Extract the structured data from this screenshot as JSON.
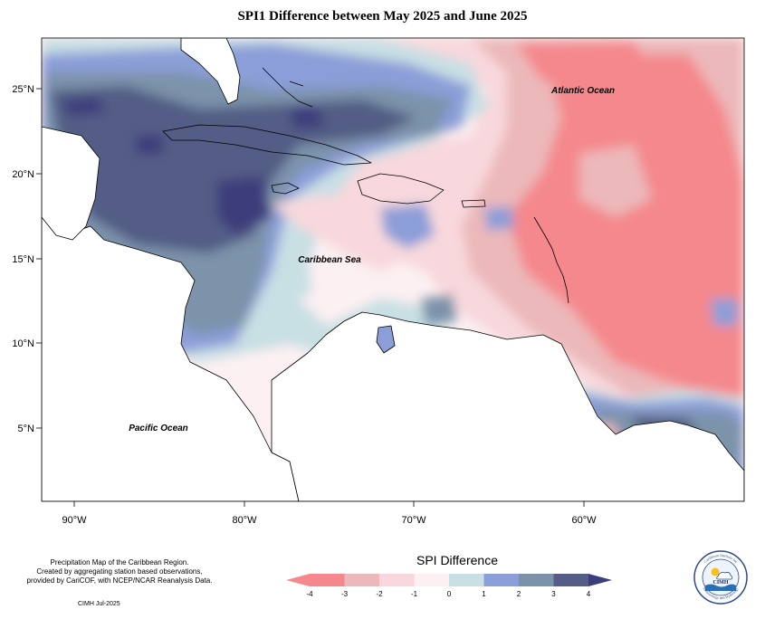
{
  "title": "SPI1 Difference between May 2025 and June 2025",
  "labels": {
    "atlantic": "Atlantic Ocean",
    "caribbean": "Caribbean Sea",
    "pacific": "Pacific Ocean"
  },
  "axes": {
    "x_ticks": [
      "90°W",
      "80°W",
      "70°W",
      "60°W"
    ],
    "y_ticks": [
      "25°N",
      "20°N",
      "15°N",
      "10°N",
      "5°N"
    ]
  },
  "credit": {
    "line1": "Precipitation Map of the Caribbean Region.",
    "line2": "Created by aggregating station based observations,",
    "line3": "provided by CariCOF, with NCEP/NCAR Reanalysis Data.",
    "stamp": "CIMH Jul-2025"
  },
  "legend": {
    "title": "SPI Difference",
    "ticks": [
      "-4",
      "-3",
      "-2",
      "-1",
      "0",
      "1",
      "2",
      "3",
      "4"
    ],
    "colors": [
      "#f4888c",
      "#ecb8ba",
      "#f8d8dc",
      "#fcf0f2",
      "#c8dfe4",
      "#8c9ed8",
      "#7b93aa",
      "#535d85"
    ],
    "low_color": "#f4888c",
    "high_color": "#3c3e7c"
  },
  "palette": {
    "strong_dry": "#f4888c",
    "dry": "#ecb8ba",
    "slight_dry": "#f8d8dc",
    "near_zero": "#fcf0f2",
    "slight_wet": "#c8dfe4",
    "wet": "#8c9ed8",
    "wetter": "#7b93aa",
    "very_wet": "#535d85",
    "extreme_wet": "#3c3e7c",
    "land": "#ffffff"
  },
  "logo": {
    "text_top": "Caribbean Institute for",
    "text_bottom": "Meteorology and Hydrology",
    "center": "CIMH"
  }
}
